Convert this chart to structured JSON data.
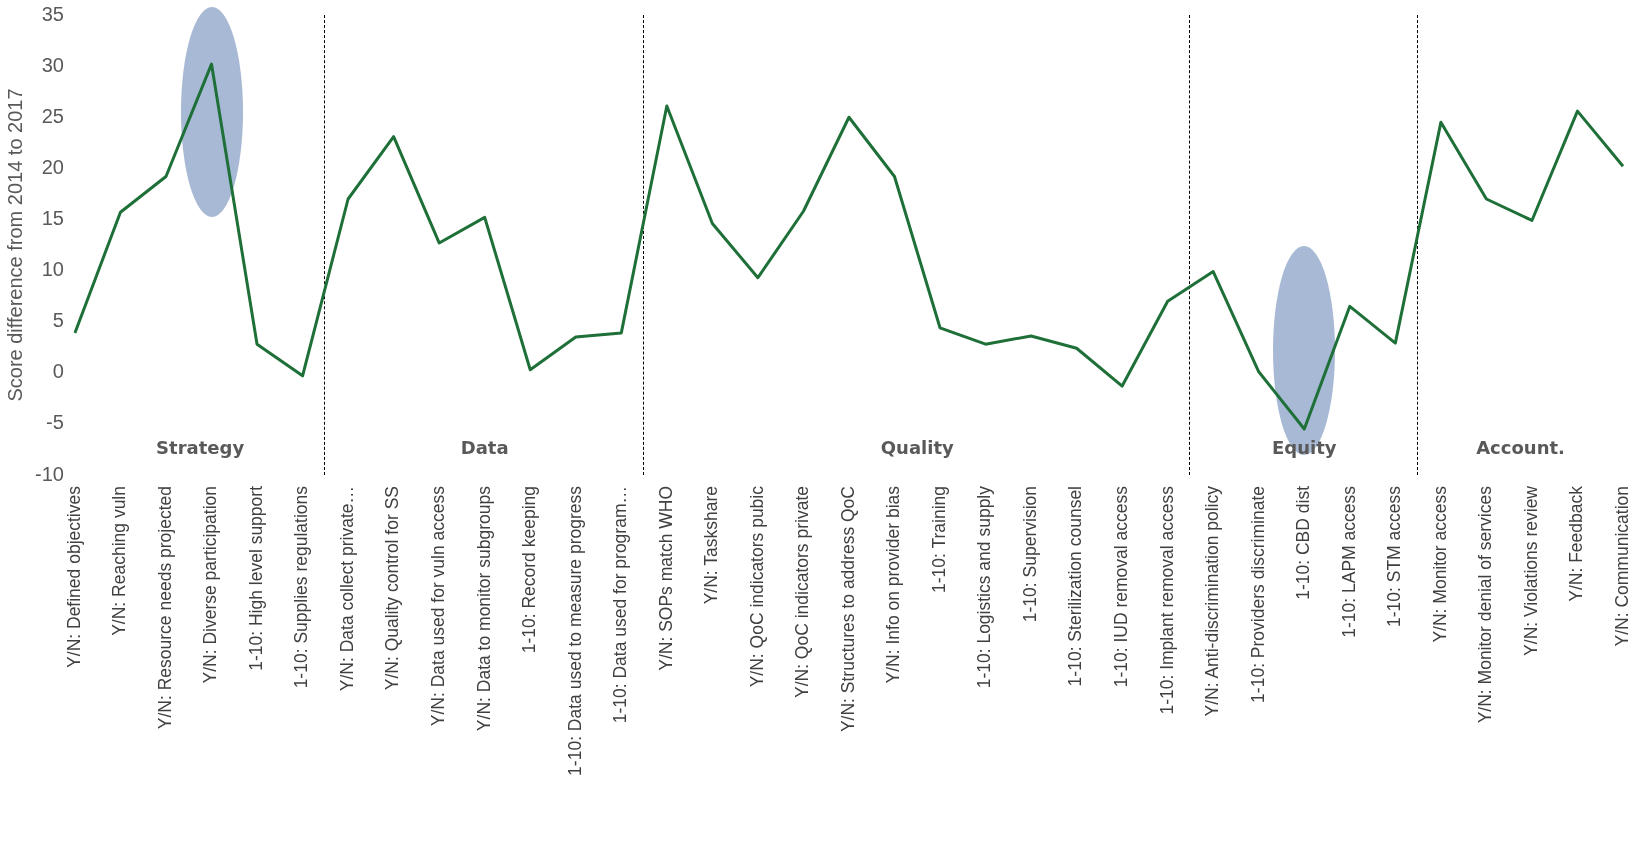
{
  "chart_data": {
    "type": "line",
    "ylabel": "Score difference from 2014 to 2017",
    "categories": [
      "Y/N: Defined objectives",
      "Y/N: Reaching vuln",
      "Y/N: Resource needs projected",
      "Y/N: Diverse participation",
      "1-10: High level support",
      "1-10: Supplies regulations",
      "Y/N: Data collect private…",
      "Y/N: Quality control for SS",
      "Y/N: Data used for vuln access",
      "Y/N: Data to monitor subgroups",
      "1-10: Record keeping",
      "1-10: Data used to measure progress",
      "1-10: Data used for program…",
      "Y/N: SOPs match WHO",
      "Y/N: Taskshare",
      "Y/N: QoC indicators pubic",
      "Y/N: QoC indicators private",
      "Y/N: Structures to address QoC",
      "Y/N: Info on provider bias",
      "1-10: Training",
      "1-10: Logistics and supply",
      "1-10: Supervision",
      "1-10: Sterilization counsel",
      "1-10: IUD removal access",
      "1-10: Implant removal access",
      "Y/N: Anti-discrimination policy",
      "1-10: Providers discriminate",
      "1-10: CBD dist",
      "1-10: LAPM access",
      "1-10: STM access",
      "Y/N: Monitor access",
      "Y/N: Monitor denial of services",
      "Y/N: Violations review",
      "Y/N: Feedback",
      "Y/N: Communication"
    ],
    "series": [
      {
        "color": "#1e7038",
        "values": [
          3.9,
          15.7,
          19.2,
          30.2,
          2.8,
          -0.3,
          17,
          23.1,
          12.7,
          15.2,
          0.3,
          3.5,
          3.9,
          26.1,
          14.6,
          9.3,
          15.8,
          25,
          19.2,
          4.4,
          2.8,
          3.6,
          2.4,
          -1.3,
          7,
          9.9,
          0.1,
          -5.5,
          6.5,
          2.9,
          24.5,
          17,
          14.9,
          25.6,
          20.2
        ]
      }
    ],
    "ylim": [
      -10,
      35
    ],
    "yticks": [
      -10,
      -5,
      0,
      5,
      10,
      15,
      20,
      25,
      30,
      35
    ],
    "grid": false,
    "legend": false,
    "marker": "none",
    "line_style": "solid",
    "annotations": [
      "Strategy",
      "Data",
      "Quality",
      "Equity",
      "Account."
    ]
  }
}
